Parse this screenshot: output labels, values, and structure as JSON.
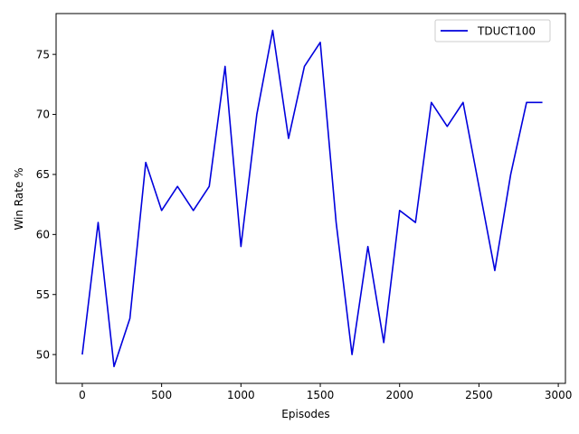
{
  "chart_data": {
    "type": "line",
    "xlabel": "Episodes",
    "ylabel": "Win Rate %",
    "xlim": [
      -165,
      3045
    ],
    "ylim": [
      47.6,
      78.4
    ],
    "xticks": [
      0,
      500,
      1000,
      1500,
      2000,
      2500,
      3000
    ],
    "yticks": [
      50,
      55,
      60,
      65,
      70,
      75
    ],
    "grid": false,
    "legend_position": "top-right",
    "line_color": "#0000dd",
    "series": [
      {
        "name": "TDUCT100",
        "x": [
          0,
          100,
          200,
          300,
          400,
          500,
          600,
          700,
          800,
          900,
          1000,
          1100,
          1200,
          1300,
          1400,
          1500,
          1600,
          1700,
          1800,
          1900,
          2000,
          2100,
          2200,
          2300,
          2400,
          2500,
          2600,
          2700,
          2800,
          2900
        ],
        "y": [
          50,
          61,
          49,
          53,
          66,
          62,
          64,
          62,
          64,
          74,
          59,
          70,
          77,
          68,
          74,
          76,
          61,
          50,
          59,
          51,
          62,
          61,
          71,
          69,
          71,
          64,
          57,
          65,
          71,
          71
        ]
      }
    ]
  }
}
